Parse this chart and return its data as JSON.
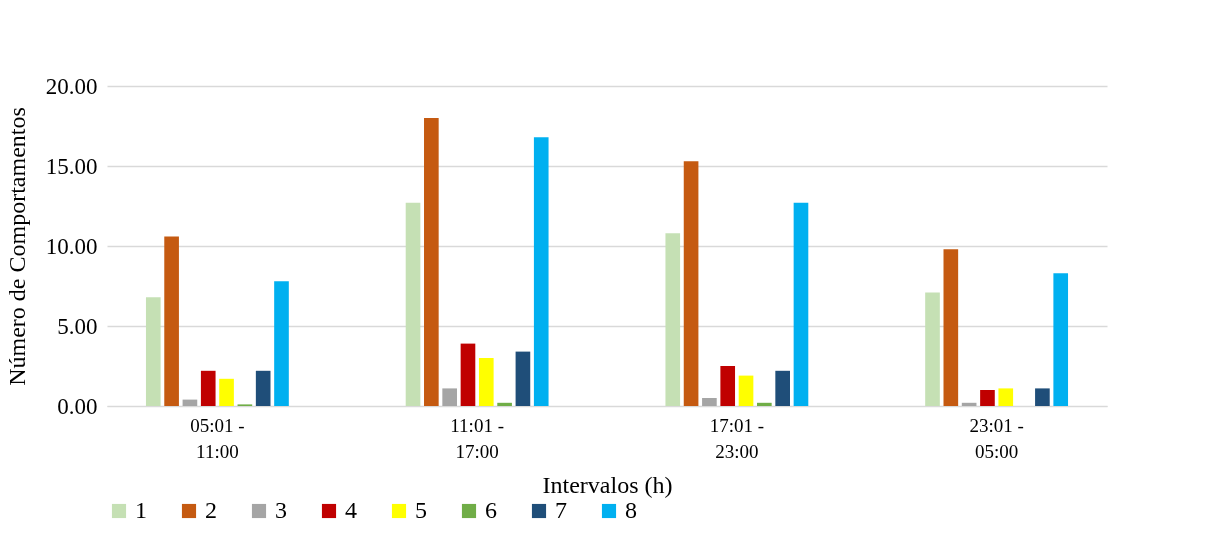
{
  "chart_data": {
    "type": "bar",
    "xlabel": "Intervalos (h)",
    "ylabel": "Número de Comportamentos",
    "categories": [
      "05:01 - 11:00",
      "11:01 - 17:00",
      "17:01 - 23:00",
      "23:01 - 05:00"
    ],
    "series": [
      {
        "name": "1",
        "color": "#c5e0b4",
        "values": [
          6.8,
          12.7,
          10.8,
          7.1
        ]
      },
      {
        "name": "2",
        "color": "#c55a11",
        "values": [
          10.6,
          18.0,
          15.3,
          9.8
        ]
      },
      {
        "name": "3",
        "color": "#a5a5a5",
        "values": [
          0.4,
          1.1,
          0.5,
          0.2
        ]
      },
      {
        "name": "4",
        "color": "#c00000",
        "values": [
          2.2,
          3.9,
          2.5,
          1.0
        ]
      },
      {
        "name": "5",
        "color": "#ffff00",
        "values": [
          1.7,
          3.0,
          1.9,
          1.1
        ]
      },
      {
        "name": "6",
        "color": "#70ad47",
        "values": [
          0.1,
          0.2,
          0.2,
          0
        ]
      },
      {
        "name": "7",
        "color": "#1f4e79",
        "values": [
          2.2,
          3.4,
          2.2,
          1.1
        ]
      },
      {
        "name": "8",
        "color": "#00b0f0",
        "values": [
          7.8,
          16.8,
          12.7,
          8.3
        ]
      }
    ],
    "ylim": [
      0,
      20
    ],
    "yticks": [
      {
        "value": 0,
        "label": "0.00"
      },
      {
        "value": 5,
        "label": "5.00"
      },
      {
        "value": 10,
        "label": "10.00"
      },
      {
        "value": 15,
        "label": "15.00"
      },
      {
        "value": 20,
        "label": "20.00"
      }
    ],
    "grid": "y",
    "legend": "bottom"
  }
}
